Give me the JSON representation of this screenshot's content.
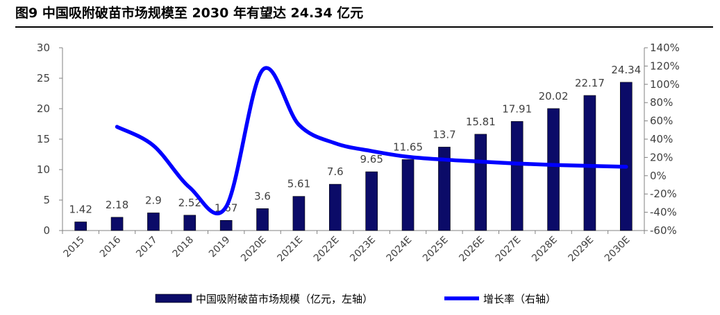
{
  "figure": {
    "title": "图9 中国吸附破苗市场规模至 2030 年有望达 24.34 亿元"
  },
  "chart_data": {
    "type": "bar+line",
    "categories": [
      "2015",
      "2016",
      "2017",
      "2018",
      "2019",
      "2020E",
      "2021E",
      "2022E",
      "2023E",
      "2024E",
      "2025E",
      "2026E",
      "2027E",
      "2028E",
      "2029E",
      "2030E"
    ],
    "series": [
      {
        "name": "中国吸附破苗市场规模（亿元，左轴）",
        "type": "bar",
        "axis": "left",
        "color": "#0b0b68",
        "values": [
          1.42,
          2.18,
          2.9,
          2.52,
          1.67,
          3.6,
          5.61,
          7.6,
          9.65,
          11.65,
          13.7,
          15.81,
          17.91,
          20.02,
          22.17,
          24.34
        ],
        "labels": [
          "1.42",
          "2.18",
          "2.9",
          "2.52",
          "1.67",
          "3.6",
          "5.61",
          "7.6",
          "9.65",
          "11.65",
          "13.7",
          "15.81",
          "17.91",
          "20.02",
          "22.17",
          "24.34"
        ]
      },
      {
        "name": "增长率（右轴）",
        "type": "line",
        "axis": "right",
        "color": "#0000ff",
        "values": [
          null,
          53.5,
          33,
          -13,
          -34,
          115.6,
          55.8,
          35.5,
          27,
          20.7,
          17.6,
          15.4,
          13.3,
          11.8,
          10.7,
          9.8
        ]
      }
    ],
    "y_left": {
      "min": 0,
      "max": 30,
      "ticks": [
        "0",
        "5",
        "10",
        "15",
        "20",
        "25",
        "30"
      ]
    },
    "y_right": {
      "min": -60,
      "max": 140,
      "ticks": [
        "-60%",
        "-40%",
        "-20%",
        "0%",
        "20%",
        "40%",
        "60%",
        "80%",
        "100%",
        "120%",
        "140%"
      ]
    },
    "legend": {
      "position": "bottom",
      "bar_label": "中国吸附破苗市场规模（亿元，左轴）",
      "line_label": "增长率（右轴）"
    }
  }
}
